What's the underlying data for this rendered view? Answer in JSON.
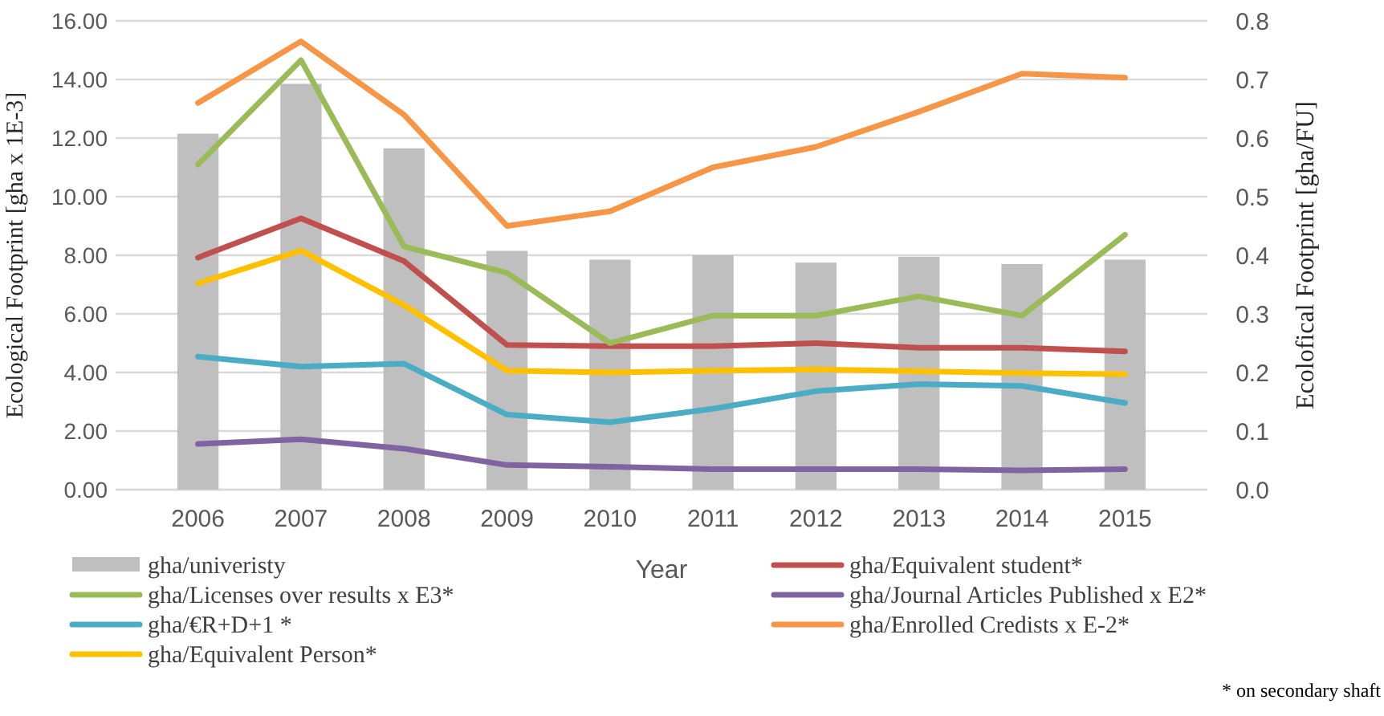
{
  "chart_data": {
    "type": "bar",
    "xlabel": "Year",
    "ylabel": "Ecological Footprint [gha x 1E-3]",
    "y2label": "Ecolofical Footprint [gha/FU]",
    "categories": [
      "2006",
      "2007",
      "2008",
      "2009",
      "2010",
      "2011",
      "2012",
      "2013",
      "2014",
      "2015"
    ],
    "series": [
      {
        "name": "gha/univeristy",
        "color": "#bfbfbf",
        "values": [
          12.15,
          13.85,
          11.65,
          8.15,
          7.85,
          8.0,
          7.75,
          7.95,
          7.7,
          7.85
        ]
      },
      {
        "name": "gha/Equivalent student*",
        "type": "line",
        "axis": "y2",
        "color": "#c0504d",
        "values": [
          0.396,
          0.463,
          0.39,
          0.247,
          0.245,
          0.245,
          0.25,
          0.242,
          0.242,
          0.236
        ]
      },
      {
        "name": "gha/Licenses over results x E3*",
        "type": "line",
        "axis": "y2",
        "color": "#9bbb59",
        "values": [
          0.555,
          0.733,
          0.415,
          0.37,
          0.25,
          0.297,
          0.297,
          0.33,
          0.297,
          0.435
        ]
      },
      {
        "name": "gha/Journal Articles Published x E2*",
        "type": "line",
        "axis": "y2",
        "color": "#8064a2",
        "values": [
          0.078,
          0.086,
          0.07,
          0.042,
          0.039,
          0.035,
          0.035,
          0.035,
          0.033,
          0.035
        ]
      },
      {
        "name": "gha/€R+D+1 *",
        "type": "line",
        "axis": "y2",
        "color": "#4bacc6",
        "values": [
          0.227,
          0.21,
          0.215,
          0.128,
          0.115,
          0.138,
          0.168,
          0.18,
          0.177,
          0.148
        ]
      },
      {
        "name": "gha/Enrolled Credists x E-2*",
        "type": "line",
        "axis": "y2",
        "color": "#f79646",
        "values": [
          0.66,
          0.765,
          0.64,
          0.45,
          0.475,
          0.55,
          0.585,
          0.645,
          0.71,
          0.703
        ]
      },
      {
        "name": "gha/Equivalent Person*",
        "type": "line",
        "axis": "y2",
        "color": "#ffc000",
        "values": [
          0.352,
          0.408,
          0.315,
          0.203,
          0.2,
          0.203,
          0.205,
          0.202,
          0.199,
          0.197
        ]
      }
    ],
    "ylim": [
      0,
      16
    ],
    "yticks": [
      {
        "value": 0,
        "label": "0.00"
      },
      {
        "value": 2,
        "label": "2.00"
      },
      {
        "value": 4,
        "label": "4.00"
      },
      {
        "value": 6,
        "label": "6.00"
      },
      {
        "value": 8,
        "label": "8.00"
      },
      {
        "value": 10,
        "label": "10.00"
      },
      {
        "value": 12,
        "label": "12.00"
      },
      {
        "value": 14,
        "label": "14.00"
      },
      {
        "value": 16,
        "label": "16.00"
      }
    ],
    "y2lim": [
      0,
      0.8
    ],
    "y2ticks": [
      {
        "value": 0,
        "label": "0.0"
      },
      0.1,
      0.2,
      0.3,
      0.4,
      0.5,
      0.6,
      0.7,
      0.8
    ],
    "grid": "y",
    "legend": "bottom",
    "line_style": "solid",
    "marker": "none",
    "annotations": [
      "* on secondary shaft"
    ]
  }
}
